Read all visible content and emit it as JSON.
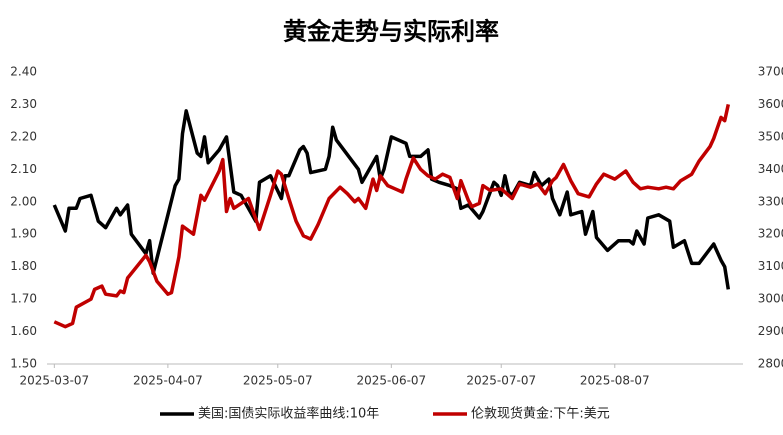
{
  "chart_data": {
    "type": "line",
    "title": "黄金走势与实际利率",
    "xlim": [
      "2025-03-05",
      "2025-09-11"
    ],
    "xticks": [
      "2025-03-07",
      "2025-04-07",
      "2025-05-07",
      "2025-06-07",
      "2025-07-07",
      "2025-08-07"
    ],
    "ylim": [
      1.5,
      2.4
    ],
    "yticks": [
      {
        "value": 1.5,
        "label": "1.50"
      },
      {
        "value": 1.6,
        "label": "1.60"
      },
      {
        "value": 1.7,
        "label": "1.70"
      },
      {
        "value": 1.8,
        "label": "1.80"
      },
      {
        "value": 1.9,
        "label": "1.90"
      },
      {
        "value": 2.0,
        "label": "2.00"
      },
      {
        "value": 2.1,
        "label": "2.10"
      },
      {
        "value": 2.2,
        "label": "2.20"
      },
      {
        "value": 2.3,
        "label": "2.30"
      },
      {
        "value": 2.4,
        "label": "2.40"
      }
    ],
    "y2lim": [
      2800,
      3700
    ],
    "y2ticks": [
      2800,
      2900,
      3000,
      3100,
      3200,
      3300,
      3400,
      3500,
      3600,
      3700
    ],
    "grid": false,
    "legend": "bottom",
    "series": [
      {
        "name": "美国:国债实际收益率曲线:10年",
        "color": "#000000",
        "x": [
          "2025-03-07",
          "2025-03-10",
          "2025-03-11",
          "2025-03-13",
          "2025-03-14",
          "2025-03-17",
          "2025-03-19",
          "2025-03-21",
          "2025-03-24",
          "2025-03-25",
          "2025-03-27",
          "2025-03-28",
          "2025-04-01",
          "2025-04-02",
          "2025-04-03",
          "2025-04-07",
          "2025-04-09",
          "2025-04-10",
          "2025-04-11",
          "2025-04-12",
          "2025-04-15",
          "2025-04-16",
          "2025-04-17",
          "2025-04-18",
          "2025-04-21",
          "2025-04-23",
          "2025-04-25",
          "2025-04-27",
          "2025-04-30",
          "2025-05-01",
          "2025-05-02",
          "2025-05-05",
          "2025-05-08",
          "2025-05-09",
          "2025-05-10",
          "2025-05-13",
          "2025-05-14",
          "2025-05-15",
          "2025-05-16",
          "2025-05-20",
          "2025-05-21",
          "2025-05-22",
          "2025-05-23",
          "2025-05-29",
          "2025-05-30",
          "2025-06-01",
          "2025-06-03",
          "2025-06-04",
          "2025-06-05",
          "2025-06-07",
          "2025-06-09",
          "2025-06-11",
          "2025-06-12",
          "2025-06-15",
          "2025-06-17",
          "2025-06-18",
          "2025-06-20",
          "2025-06-23",
          "2025-06-25",
          "2025-06-26",
          "2025-06-28",
          "2025-07-01",
          "2025-07-02",
          "2025-07-05",
          "2025-07-06",
          "2025-07-07",
          "2025-07-08",
          "2025-07-09",
          "2025-07-10",
          "2025-07-12",
          "2025-07-15",
          "2025-07-16",
          "2025-07-18",
          "2025-07-20",
          "2025-07-21",
          "2025-07-23",
          "2025-07-25",
          "2025-07-26",
          "2025-07-29",
          "2025-07-30",
          "2025-08-01",
          "2025-08-02",
          "2025-08-05",
          "2025-08-08",
          "2025-08-11",
          "2025-08-12",
          "2025-08-13",
          "2025-08-15",
          "2025-08-16",
          "2025-08-19",
          "2025-08-22",
          "2025-08-23",
          "2025-08-26",
          "2025-08-28",
          "2025-08-30",
          "2025-09-03",
          "2025-09-05",
          "2025-09-06",
          "2025-09-07"
        ],
        "values": [
          1.99,
          1.91,
          1.98,
          1.98,
          2.01,
          2.02,
          1.94,
          1.92,
          1.98,
          1.96,
          1.99,
          1.9,
          1.84,
          1.88,
          1.78,
          1.96,
          2.05,
          2.07,
          2.21,
          2.28,
          2.15,
          2.14,
          2.2,
          2.12,
          2.16,
          2.2,
          2.03,
          2.02,
          1.96,
          1.94,
          2.06,
          2.08,
          2.01,
          2.08,
          2.08,
          2.16,
          2.17,
          2.15,
          2.09,
          2.1,
          2.14,
          2.23,
          2.19,
          2.1,
          2.06,
          2.1,
          2.14,
          2.07,
          2.1,
          2.2,
          2.19,
          2.18,
          2.14,
          2.14,
          2.16,
          2.07,
          2.06,
          2.05,
          2.04,
          1.98,
          1.99,
          1.95,
          1.97,
          2.06,
          2.05,
          2.02,
          2.08,
          2.03,
          2.02,
          2.06,
          2.05,
          2.09,
          2.05,
          2.07,
          2.01,
          1.96,
          2.03,
          1.96,
          1.97,
          1.9,
          1.97,
          1.89,
          1.85,
          1.88,
          1.88,
          1.87,
          1.91,
          1.87,
          1.95,
          1.96,
          1.94,
          1.86,
          1.88,
          1.81,
          1.81,
          1.87,
          1.82,
          1.8,
          1.73
        ]
      },
      {
        "name": "伦敦现货黄金:下午:美元",
        "color": "#c00000",
        "axis": "y2",
        "x": [
          "2025-03-07",
          "2025-03-10",
          "2025-03-12",
          "2025-03-13",
          "2025-03-17",
          "2025-03-18",
          "2025-03-20",
          "2025-03-21",
          "2025-03-24",
          "2025-03-25",
          "2025-03-26",
          "2025-03-27",
          "2025-04-01",
          "2025-04-02",
          "2025-04-04",
          "2025-04-07",
          "2025-04-08",
          "2025-04-10",
          "2025-04-11",
          "2025-04-14",
          "2025-04-16",
          "2025-04-17",
          "2025-04-21",
          "2025-04-22",
          "2025-04-23",
          "2025-04-24",
          "2025-04-25",
          "2025-04-29",
          "2025-05-02",
          "2025-05-05",
          "2025-05-07",
          "2025-05-08",
          "2025-05-10",
          "2025-05-12",
          "2025-05-14",
          "2025-05-16",
          "2025-05-18",
          "2025-05-21",
          "2025-05-24",
          "2025-05-26",
          "2025-05-28",
          "2025-05-29",
          "2025-05-31",
          "2025-06-02",
          "2025-06-03",
          "2025-06-04",
          "2025-06-06",
          "2025-06-08",
          "2025-06-10",
          "2025-06-11",
          "2025-06-13",
          "2025-06-15",
          "2025-06-17",
          "2025-06-19",
          "2025-06-21",
          "2025-06-23",
          "2025-06-25",
          "2025-06-26",
          "2025-06-28",
          "2025-06-29",
          "2025-07-01",
          "2025-07-02",
          "2025-07-04",
          "2025-07-07",
          "2025-07-09",
          "2025-07-10",
          "2025-07-12",
          "2025-07-15",
          "2025-07-17",
          "2025-07-19",
          "2025-07-21",
          "2025-07-22",
          "2025-07-24",
          "2025-07-26",
          "2025-07-28",
          "2025-07-31",
          "2025-08-02",
          "2025-08-04",
          "2025-08-07",
          "2025-08-10",
          "2025-08-12",
          "2025-08-14",
          "2025-08-16",
          "2025-08-19",
          "2025-08-21",
          "2025-08-23",
          "2025-08-25",
          "2025-08-28",
          "2025-08-30",
          "2025-09-02",
          "2025-09-03",
          "2025-09-05",
          "2025-09-06",
          "2025-09-07"
        ],
        "values": [
          2930,
          2915,
          2925,
          2975,
          3000,
          3030,
          3040,
          3015,
          3010,
          3025,
          3020,
          3065,
          3135,
          3115,
          3055,
          3015,
          3020,
          3130,
          3225,
          3200,
          3320,
          3305,
          3395,
          3430,
          3270,
          3310,
          3280,
          3310,
          3215,
          3320,
          3395,
          3385,
          3310,
          3240,
          3195,
          3185,
          3230,
          3310,
          3345,
          3325,
          3300,
          3310,
          3280,
          3370,
          3335,
          3380,
          3350,
          3340,
          3330,
          3370,
          3435,
          3400,
          3380,
          3370,
          3385,
          3375,
          3310,
          3365,
          3305,
          3285,
          3295,
          3350,
          3335,
          3340,
          3320,
          3310,
          3355,
          3345,
          3355,
          3325,
          3365,
          3375,
          3415,
          3365,
          3325,
          3315,
          3355,
          3385,
          3370,
          3395,
          3360,
          3340,
          3345,
          3340,
          3345,
          3340,
          3365,
          3385,
          3425,
          3470,
          3495,
          3560,
          3550,
          3600
        ]
      }
    ]
  }
}
